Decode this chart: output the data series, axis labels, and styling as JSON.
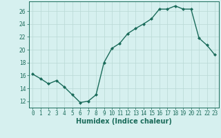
{
  "x": [
    0,
    1,
    2,
    3,
    4,
    5,
    6,
    7,
    8,
    9,
    10,
    11,
    12,
    13,
    14,
    15,
    16,
    17,
    18,
    19,
    20,
    21,
    22,
    23
  ],
  "y": [
    16.2,
    15.5,
    14.7,
    15.2,
    14.2,
    13.0,
    11.8,
    12.0,
    13.0,
    18.0,
    20.2,
    21.0,
    22.5,
    23.3,
    24.0,
    24.8,
    26.3,
    26.3,
    26.8,
    26.3,
    26.3,
    21.8,
    20.7,
    19.2
  ],
  "line_color": "#1a6b5a",
  "marker": "D",
  "markersize": 2,
  "bg_color": "#d6f0ef",
  "grid_color": "#b8d8d5",
  "tick_color": "#1a6b5a",
  "label_color": "#1a6b5a",
  "xlabel": "Humidex (Indice chaleur)",
  "ylim": [
    11,
    27.5
  ],
  "yticks": [
    12,
    14,
    16,
    18,
    20,
    22,
    24,
    26
  ],
  "xlim": [
    -0.5,
    23.5
  ],
  "xticks": [
    0,
    1,
    2,
    3,
    4,
    5,
    6,
    7,
    8,
    9,
    10,
    11,
    12,
    13,
    14,
    15,
    16,
    17,
    18,
    19,
    20,
    21,
    22,
    23
  ],
  "tick_fontsize": 5.5,
  "xlabel_fontsize": 7,
  "linewidth": 1.0
}
